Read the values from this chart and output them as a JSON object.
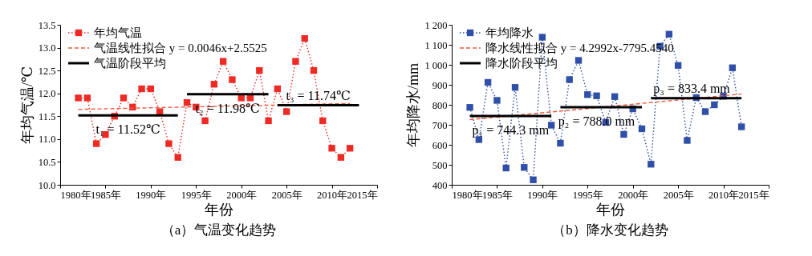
{
  "chart_data": [
    {
      "type": "line",
      "title": "（a）气温变化趋势",
      "xlabel": "年份",
      "ylabel": "年均气温/℃",
      "x": [
        1982,
        1983,
        1984,
        1985,
        1986,
        1987,
        1988,
        1989,
        1990,
        1991,
        1992,
        1993,
        1994,
        1995,
        1996,
        1997,
        1998,
        1999,
        2000,
        2001,
        2002,
        2003,
        2004,
        2005,
        2006,
        2007,
        2008,
        2009,
        2010,
        2011,
        2012
      ],
      "series": [
        {
          "name": "年均气温",
          "color": "#ee2a24",
          "marker": "square",
          "line_style": "dotted",
          "values": [
            11.9,
            11.9,
            10.9,
            11.1,
            11.5,
            11.9,
            11.7,
            12.1,
            12.1,
            11.6,
            10.9,
            10.6,
            11.8,
            11.7,
            11.4,
            12.2,
            12.7,
            12.3,
            11.9,
            11.9,
            12.5,
            11.4,
            12.1,
            11.6,
            12.7,
            13.2,
            12.5,
            11.4,
            10.8,
            10.6,
            10.8
          ]
        },
        {
          "name": "气温线性拟合 y = 0.0046x+2.5525",
          "color": "#f05a3c",
          "marker": "none",
          "line_style": "dashed",
          "x": [
            1982,
            2012
          ],
          "values": [
            11.65,
            11.78
          ]
        },
        {
          "name": "气温阶段平均",
          "color": "#000000",
          "marker": "none",
          "line_style": "solid",
          "x": [
            1982,
            1993,
            1993.5,
            1994,
            2003,
            2003.5,
            2004,
            2013
          ],
          "values": [
            11.52,
            11.52,
            null,
            11.98,
            11.98,
            null,
            11.74,
            11.74
          ]
        }
      ],
      "annotations": [
        {
          "text": "t₁ = 11.52℃",
          "x": 1987.5,
          "y": 11.52
        },
        {
          "text": "t₂ = 11.98℃",
          "x": 1998.5,
          "y": 11.98
        },
        {
          "text": "t₃ = 11.74℃",
          "x": 2008.5,
          "y": 11.74
        }
      ],
      "xlim": [
        1980,
        2015
      ],
      "xticks": [
        {
          "value": 1980,
          "label": "1980年"
        },
        {
          "value": 1985,
          "label": "1985年"
        },
        {
          "value": 1990,
          "label": "1990年"
        },
        {
          "value": 1995,
          "label": "1995年"
        },
        {
          "value": 2000,
          "label": "2000年"
        },
        {
          "value": 2005,
          "label": "2005年"
        },
        {
          "value": 2010,
          "label": "2010年"
        },
        {
          "value": 2015,
          "label": "2015年"
        }
      ],
      "ylim": [
        10,
        13.5
      ],
      "yticks": [
        {
          "value": 10,
          "label": "10.0"
        },
        10.5,
        {
          "value": 11,
          "label": "11.0"
        },
        11.5,
        {
          "value": 12,
          "label": "12.0"
        },
        12.5,
        {
          "value": 13,
          "label": "13.0"
        },
        13.5
      ],
      "grid": false,
      "legend": "top left"
    },
    {
      "type": "line",
      "title": "（b）降水变化趋势",
      "xlabel": "年份",
      "ylabel": "年均降水/mm",
      "x": [
        1982,
        1983,
        1984,
        1985,
        1986,
        1987,
        1988,
        1989,
        1990,
        1991,
        1992,
        1993,
        1994,
        1995,
        1996,
        1997,
        1998,
        1999,
        2000,
        2001,
        2002,
        2003,
        2004,
        2005,
        2006,
        2007,
        2008,
        2009,
        2010,
        2011,
        2012
      ],
      "series": [
        {
          "name": "年均降水",
          "color": "#2f4fa8",
          "marker": "square",
          "line_style": "dotted",
          "values": [
            787,
            626,
            912,
            822,
            484,
            887,
            487,
            425,
            1138,
            698,
            608,
            926,
            1022,
            851,
            845,
            712,
            841,
            652,
            780,
            680,
            503,
            1093,
            1153,
            997,
            622,
            836,
            766,
            800,
            843,
            985,
            690
          ]
        },
        {
          "name": "降水线性拟合 y = 4.2992x-7795.4540",
          "color": "#f05a3c",
          "marker": "none",
          "line_style": "dashed",
          "x": [
            1982,
            2012
          ],
          "values": [
            726,
            854
          ]
        },
        {
          "name": "降水阶段平均",
          "color": "#000000",
          "marker": "none",
          "line_style": "solid",
          "x": [
            1982,
            1991,
            1991.5,
            1992,
            2001,
            2001.5,
            2002,
            2012
          ],
          "values": [
            744.3,
            744.3,
            null,
            788.0,
            788.0,
            null,
            833.4,
            833.4
          ]
        }
      ],
      "annotations": [
        {
          "text": "p₁ = 744.3 mm",
          "x": 1986.5,
          "y": 744.3
        },
        {
          "text": "p₂ = 788.0 mm",
          "x": 1996,
          "y": 788.0
        },
        {
          "text": "p₃ = 833.4 mm",
          "x": 2006.5,
          "y": 833.4
        }
      ],
      "xlim": [
        1980,
        2015
      ],
      "xticks": [
        {
          "value": 1980,
          "label": "1980年"
        },
        {
          "value": 1985,
          "label": "1985年"
        },
        {
          "value": 1990,
          "label": "1990年"
        },
        {
          "value": 1995,
          "label": "1995年"
        },
        {
          "value": 2000,
          "label": "2000年"
        },
        {
          "value": 2005,
          "label": "2005年"
        },
        {
          "value": 2010,
          "label": "2010年"
        },
        {
          "value": 2015,
          "label": "2015年"
        }
      ],
      "ylim": [
        400,
        1200
      ],
      "yticks": [
        400,
        500,
        600,
        700,
        800,
        900,
        {
          "value": 1000,
          "label": "1 000"
        },
        {
          "value": 1100,
          "label": "1 100"
        },
        {
          "value": 1200,
          "label": "1 200"
        }
      ],
      "grid": false,
      "legend": "top left"
    }
  ]
}
